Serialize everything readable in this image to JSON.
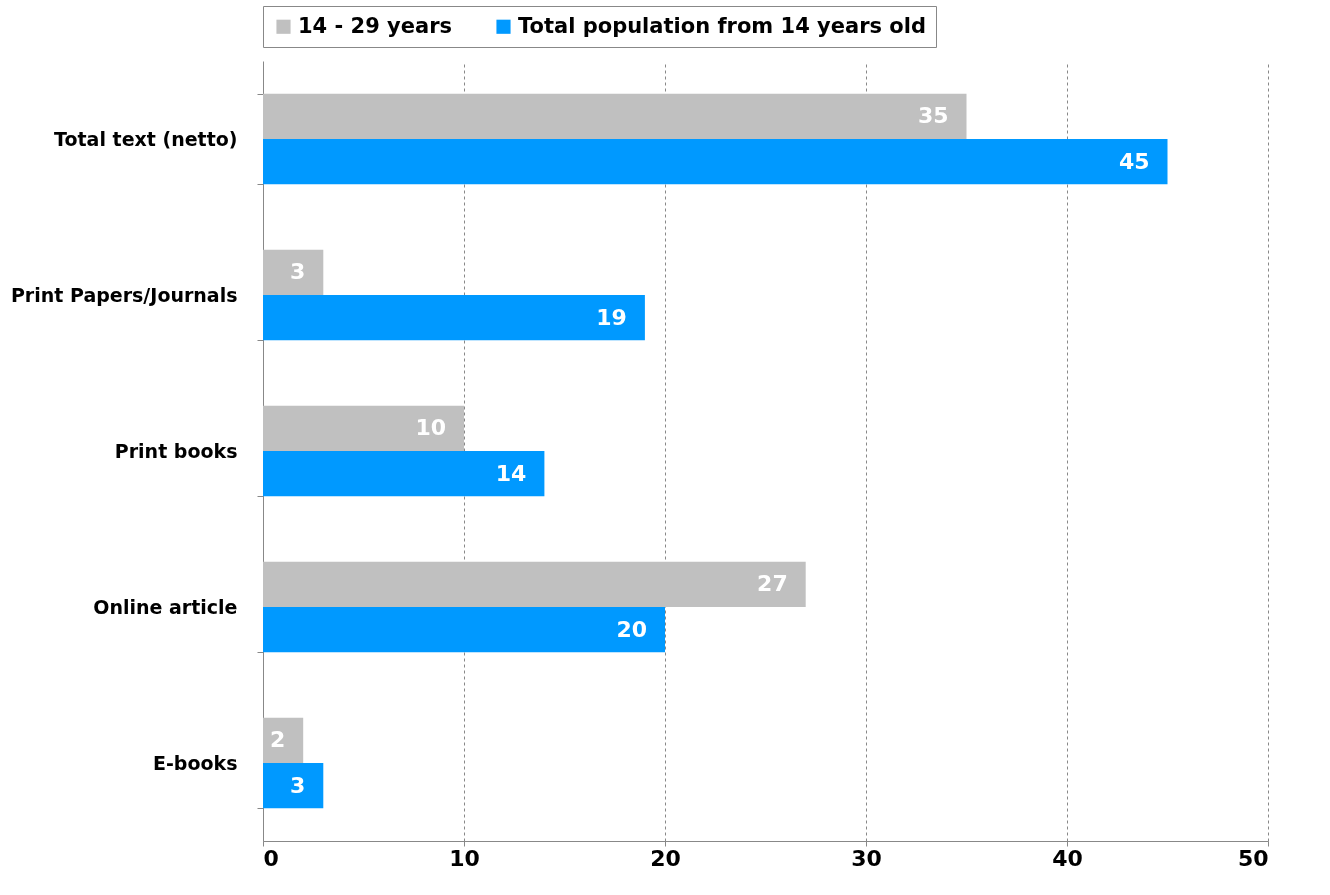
{
  "chart_data": {
    "type": "bar",
    "orientation": "horizontal",
    "categories": [
      "Total text (netto)",
      "Print Papers/Journals",
      "Print books",
      "Online article",
      "E-books"
    ],
    "series": [
      {
        "name": "14 - 29 years",
        "color": "#c0c0c0",
        "values": [
          35,
          3,
          10,
          27,
          2
        ]
      },
      {
        "name": "Total population from 14 years old",
        "color": "#0099ff",
        "values": [
          45,
          19,
          14,
          20,
          3
        ]
      }
    ],
    "xlim": [
      0,
      50
    ],
    "xticks": [
      0,
      10,
      20,
      30,
      40,
      50
    ],
    "grid": "x",
    "legend": "top",
    "data_labels": true
  }
}
